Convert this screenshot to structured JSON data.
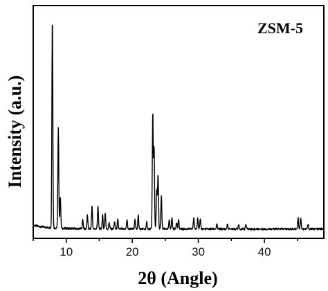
{
  "chart_data": {
    "type": "line",
    "title": "",
    "annotation": "ZSM-5",
    "xlabel": "2θ (Angle)",
    "ylabel": "Intensity (a.u.)",
    "xlim": [
      5,
      49
    ],
    "ylim": [
      0,
      100
    ],
    "x_ticks": [
      10,
      20,
      30,
      40
    ],
    "x_tick_labels": [
      "10",
      "20",
      "30",
      "40"
    ],
    "y_ticks_shown": false,
    "grid": false,
    "legend": "none",
    "line_color": "#000000",
    "baseline": 4,
    "peaks": [
      {
        "x": 7.9,
        "y": 95
      },
      {
        "x": 8.8,
        "y": 47
      },
      {
        "x": 9.1,
        "y": 18
      },
      {
        "x": 12.5,
        "y": 8
      },
      {
        "x": 13.2,
        "y": 10
      },
      {
        "x": 13.9,
        "y": 14
      },
      {
        "x": 14.8,
        "y": 14
      },
      {
        "x": 15.5,
        "y": 10
      },
      {
        "x": 15.9,
        "y": 11
      },
      {
        "x": 16.5,
        "y": 7
      },
      {
        "x": 17.3,
        "y": 7
      },
      {
        "x": 17.8,
        "y": 8
      },
      {
        "x": 19.2,
        "y": 8
      },
      {
        "x": 20.4,
        "y": 8
      },
      {
        "x": 20.9,
        "y": 10
      },
      {
        "x": 22.2,
        "y": 7
      },
      {
        "x": 23.1,
        "y": 54
      },
      {
        "x": 23.3,
        "y": 39
      },
      {
        "x": 23.7,
        "y": 21
      },
      {
        "x": 23.9,
        "y": 27
      },
      {
        "x": 24.4,
        "y": 18
      },
      {
        "x": 25.6,
        "y": 8
      },
      {
        "x": 26.0,
        "y": 9
      },
      {
        "x": 26.7,
        "y": 7
      },
      {
        "x": 27.0,
        "y": 8
      },
      {
        "x": 29.3,
        "y": 9
      },
      {
        "x": 29.9,
        "y": 9
      },
      {
        "x": 30.3,
        "y": 8
      },
      {
        "x": 32.8,
        "y": 6
      },
      {
        "x": 34.4,
        "y": 6
      },
      {
        "x": 36.1,
        "y": 6
      },
      {
        "x": 37.2,
        "y": 6
      },
      {
        "x": 45.1,
        "y": 9
      },
      {
        "x": 45.5,
        "y": 9
      },
      {
        "x": 46.6,
        "y": 6
      }
    ]
  }
}
